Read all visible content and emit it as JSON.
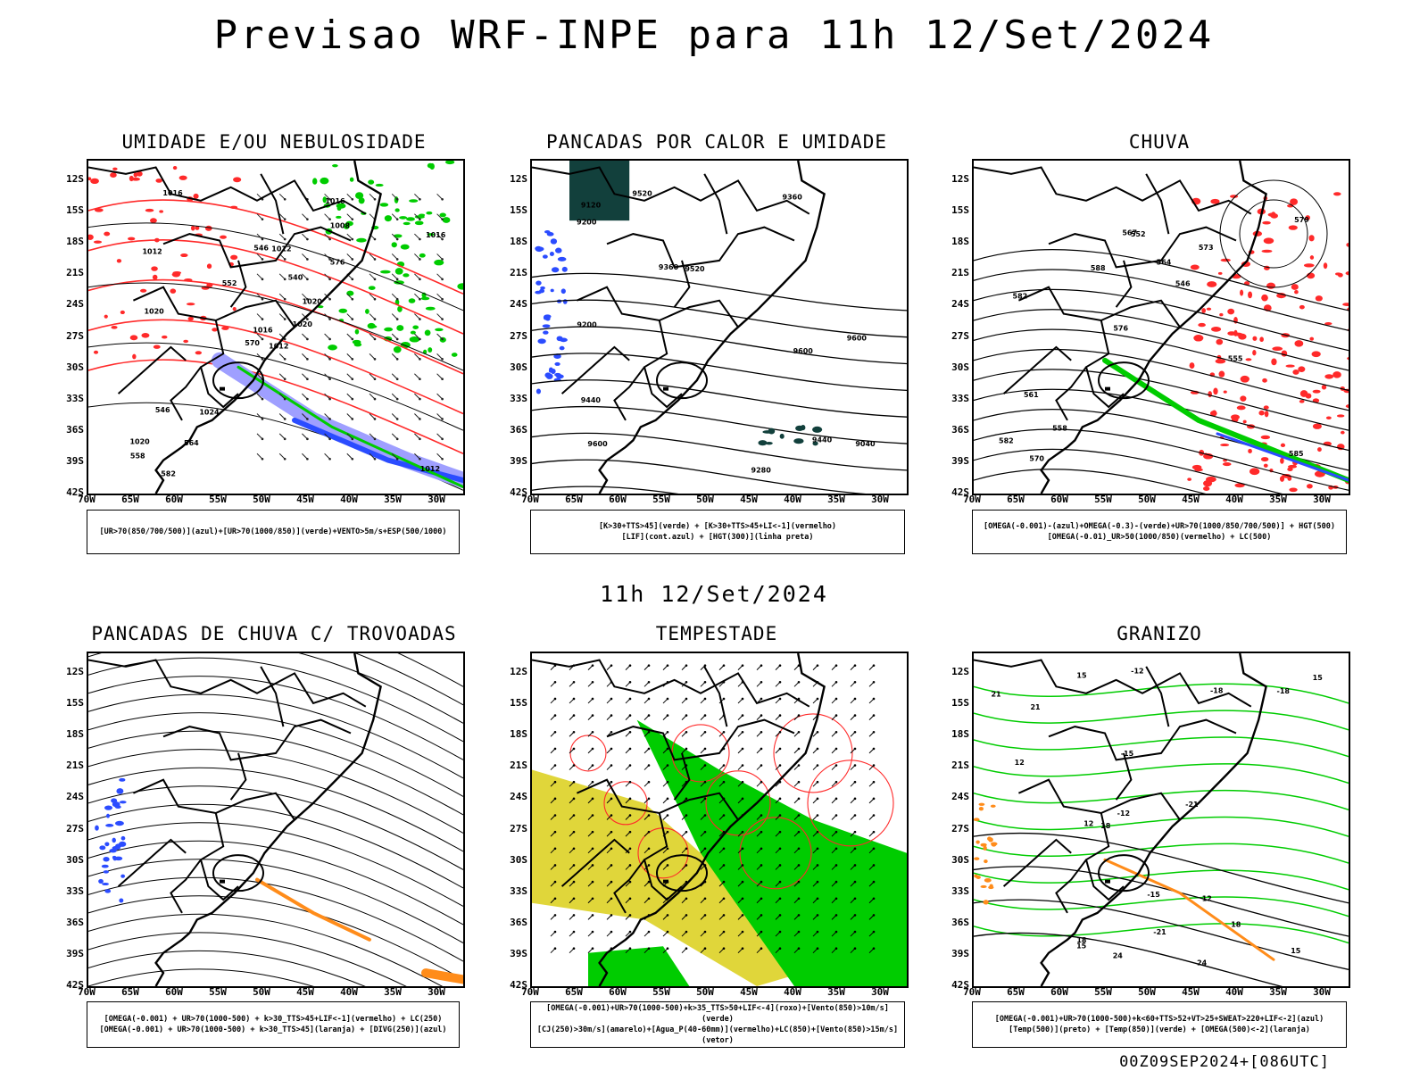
{
  "title": "Previsao WRF-INPE  para 11h 12/Set/2024",
  "mid_title": "11h 12/Set/2024",
  "footer": "00Z09SEP2024+[086UTC]",
  "lat_labels": [
    "12S",
    "15S",
    "18S",
    "21S",
    "24S",
    "27S",
    "30S",
    "33S",
    "36S",
    "39S",
    "42S"
  ],
  "lon_labels": [
    "70W",
    "65W",
    "60W",
    "55W",
    "50W",
    "45W",
    "40W",
    "35W",
    "30W"
  ],
  "panels": [
    {
      "id": "umidade",
      "title": "UMIDADE E/OU NEBULOSIDADE",
      "legend": [
        "[UR>70(850/700/500)](azul)+[UR>70(1000/850)](verde)+VENTO>5m/s+ESP(500/1000)"
      ],
      "contour_labels": [
        "1012",
        "1012",
        "1016",
        "1020",
        "1020",
        "1024",
        "1016",
        "1012",
        "1008",
        "1020",
        "1016",
        "1012",
        "1020",
        "1016",
        "570",
        "576",
        "582",
        "546",
        "540",
        "546",
        "552",
        "558",
        "564"
      ]
    },
    {
      "id": "pancadas",
      "title": "PANCADAS POR CALOR E UMIDADE",
      "legend": [
        "[K>30+TTS>45](verde) + [K>30+TTS>45+LI<-1](vermelho)",
        "[LIF](cont.azul) + [HGT(300)](linha preta)"
      ],
      "contour_labels": [
        "9600",
        "9600",
        "9600",
        "9520",
        "9520",
        "9440",
        "9440",
        "9360",
        "9360",
        "9280",
        "9200",
        "9200",
        "9120",
        "9040"
      ]
    },
    {
      "id": "chuva",
      "title": "CHUVA",
      "legend": [
        "[OMEGA(-0.001)-(azul)+OMEGA(-0.3)-(verde)+UR>70(1000/850/700/500)] + HGT(500)",
        "[OMEGA(-0.01)_UR>50(1000/850)(vermelho) + LC(500)"
      ],
      "contour_labels": [
        "585",
        "582",
        "579",
        "576",
        "573",
        "570",
        "567",
        "564",
        "561",
        "588",
        "582",
        "558",
        "552",
        "546",
        "555"
      ]
    },
    {
      "id": "trovoadas",
      "title": "PANCADAS DE CHUVA C/ TROVOADAS",
      "legend": [
        "[OMEGA(-0.001) + UR>70(1000-500) + k>30_TTS>45+LIF<-1](vermelho) + LC(250)",
        "[OMEGA(-0.001) + UR>70(1000-500) + k>30_TTS>45](laranja) + [DIVG(250)](azul)"
      ],
      "contour_labels": []
    },
    {
      "id": "tempestade",
      "title": "TEMPESTADE",
      "legend": [
        "[OMEGA(-0.001)+UR>70(1000-500)+k>35_TTS>50+LIF<-4](roxo)+[Vento(850)>10m/s](verde)",
        "[CJ(250)>30m/s](amarelo)+[Agua_P(40-60mm)](vermelho)+LC(850)+[Vento(850)>15m/s](vetor)"
      ],
      "contour_labels": []
    },
    {
      "id": "granizo",
      "title": "GRANIZO",
      "legend": [
        "[OMEGA(-0.001)+UR>70(1000-500)+k<60+TTS>52+VT>25+SWEAT>220+LIF<-2](azul)",
        "[Temp(500)](preto) + [Temp(850)](verde) + [OMEGA(500)<-2](laranja)"
      ],
      "contour_labels": [
        "24",
        "24",
        "18",
        "18",
        "15",
        "21",
        "12",
        "15",
        "-12",
        "-15",
        "-18",
        "-21",
        "-12",
        "-15",
        "-18",
        "-21",
        "12",
        "15",
        "18",
        "21",
        "12",
        "15"
      ]
    }
  ],
  "colors": {
    "blue": "#2b4cff",
    "green": "#00cc00",
    "red": "#ff2a2a",
    "orange": "#ff8c1a",
    "yellow": "#e0d63a",
    "lilac": "#9f9fff",
    "dark": "#12403c"
  }
}
